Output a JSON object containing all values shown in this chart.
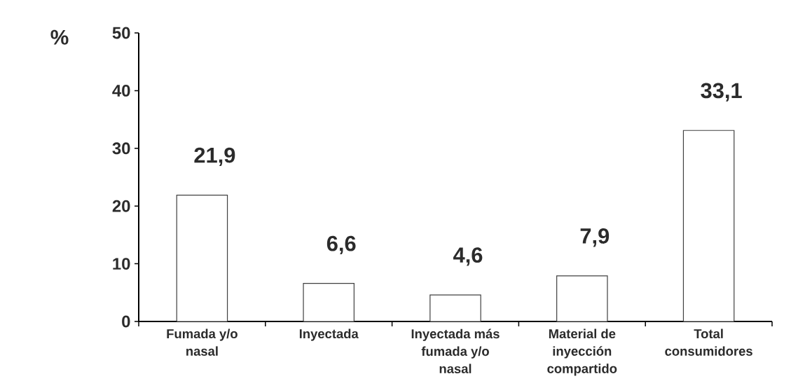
{
  "chart_data": {
    "type": "bar",
    "ylabel": "%",
    "categories": [
      "Fumada y/o nasal",
      "Inyectada",
      "Inyectada más fumada y/o nasal",
      "Material de inyección compartido",
      "Total consumidores"
    ],
    "values": [
      21.9,
      6.6,
      4.6,
      7.9,
      33.1
    ],
    "value_labels": [
      "21,9",
      "6,6",
      "4,6",
      "7,9",
      "33,1"
    ],
    "color": "#ffffff",
    "ylim": [
      0,
      50
    ],
    "yticks": [
      0,
      10,
      20,
      30,
      40,
      50
    ]
  }
}
